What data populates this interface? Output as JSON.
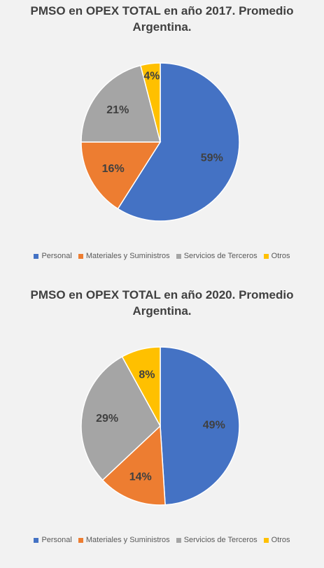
{
  "colors": {
    "background": "#f2f2f2",
    "personal": "#4472c4",
    "materiales": "#ed7d31",
    "servicios": "#a5a5a5",
    "otros": "#ffc000"
  },
  "chart_data": [
    {
      "type": "pie",
      "title_line1": "PMSO en OPEX TOTAL en año 2017.  Promedio",
      "title_line2": "Argentina.",
      "categories": [
        "Personal",
        "Materiales y Suministros",
        "Servicios de Terceros",
        "Otros"
      ],
      "values": [
        59,
        16,
        21,
        4
      ],
      "labels": [
        "59%",
        "16%",
        "21%",
        "4%"
      ],
      "legend_position": "bottom"
    },
    {
      "type": "pie",
      "title_line1": "PMSO en OPEX TOTAL en año 2020.  Promedio",
      "title_line2": "Argentina.",
      "categories": [
        "Personal",
        "Materiales y Suministros",
        "Servicios de Terceros",
        "Otros"
      ],
      "values": [
        49,
        14,
        29,
        8
      ],
      "labels": [
        "49%",
        "14%",
        "29%",
        "8%"
      ],
      "legend_position": "bottom"
    }
  ]
}
